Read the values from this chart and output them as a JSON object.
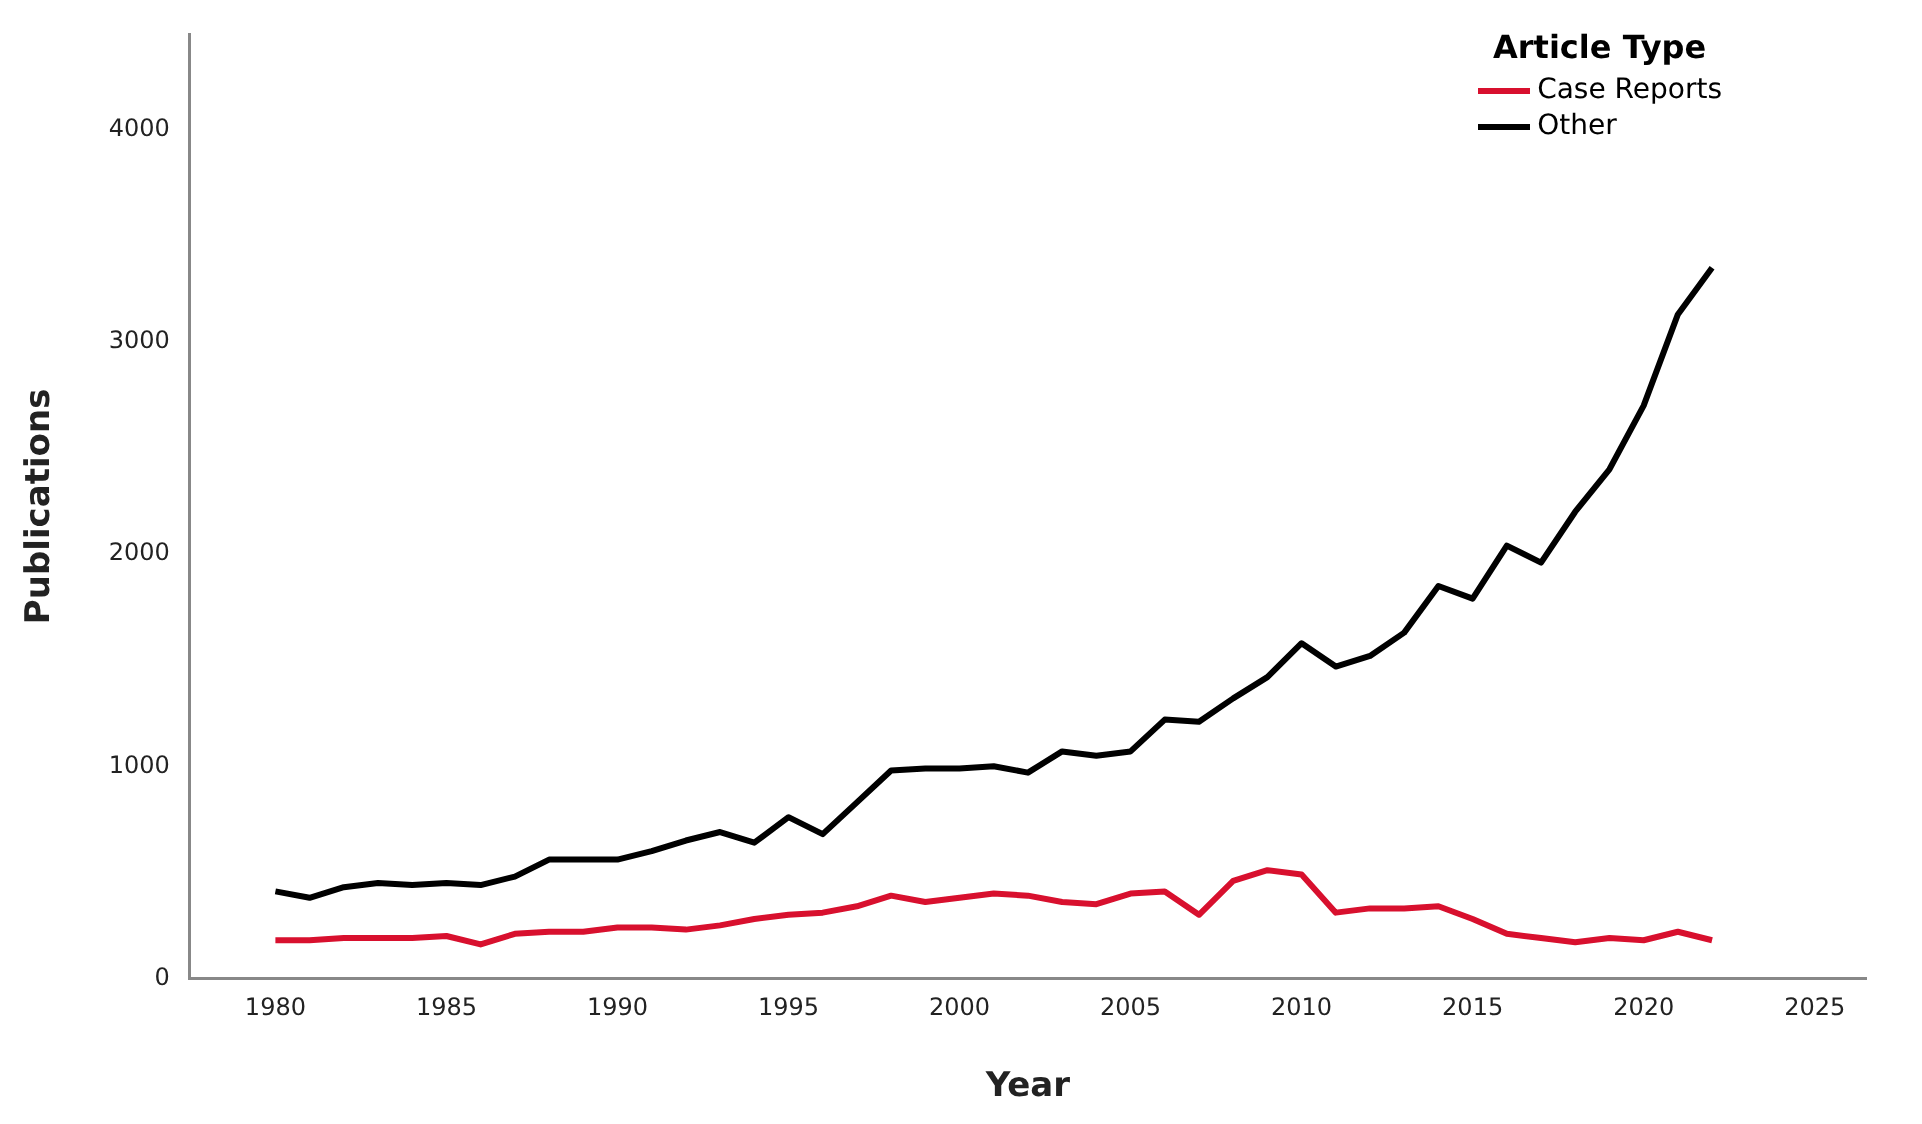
{
  "chart_data": {
    "type": "line",
    "xlabel": "Year",
    "ylabel": "Publications",
    "legend_title": "Article Type",
    "legend": "top right",
    "grid": false,
    "marker": "none",
    "line_style": "solid",
    "x": [
      1980,
      1981,
      1982,
      1983,
      1984,
      1985,
      1986,
      1987,
      1988,
      1989,
      1990,
      1991,
      1992,
      1993,
      1994,
      1995,
      1996,
      1997,
      1998,
      1999,
      2000,
      2001,
      2002,
      2003,
      2004,
      2005,
      2006,
      2007,
      2008,
      2009,
      2010,
      2011,
      2012,
      2013,
      2014,
      2015,
      2016,
      2017,
      2018,
      2019,
      2020,
      2021,
      2022
    ],
    "xlim": [
      1977.5,
      2026.5
    ],
    "xticks": [
      1980,
      1985,
      1990,
      1995,
      2000,
      2005,
      2010,
      2015,
      2020,
      2025
    ],
    "ylim": [
      0,
      4450
    ],
    "yticks": [
      0,
      1000,
      2000,
      3000,
      4000
    ],
    "series": [
      {
        "name": "Case Reports",
        "color": "#d8102e",
        "values": [
          180,
          180,
          190,
          190,
          190,
          200,
          160,
          210,
          220,
          220,
          240,
          240,
          230,
          250,
          280,
          300,
          310,
          340,
          390,
          360,
          380,
          400,
          390,
          360,
          350,
          400,
          410,
          300,
          460,
          510,
          490,
          310,
          330,
          330,
          340,
          280,
          210,
          190,
          170,
          190,
          180,
          220,
          180
        ]
      },
      {
        "name": "Other",
        "color": "#000000",
        "values": [
          410,
          380,
          430,
          450,
          440,
          450,
          440,
          480,
          560,
          560,
          560,
          600,
          650,
          690,
          640,
          760,
          680,
          830,
          980,
          990,
          990,
          1000,
          970,
          1070,
          1050,
          1070,
          1220,
          1210,
          1320,
          1420,
          1580,
          1470,
          1520,
          1630,
          1850,
          1790,
          2040,
          1960,
          2200,
          2400,
          2700,
          3130,
          3350
        ]
      }
    ]
  }
}
